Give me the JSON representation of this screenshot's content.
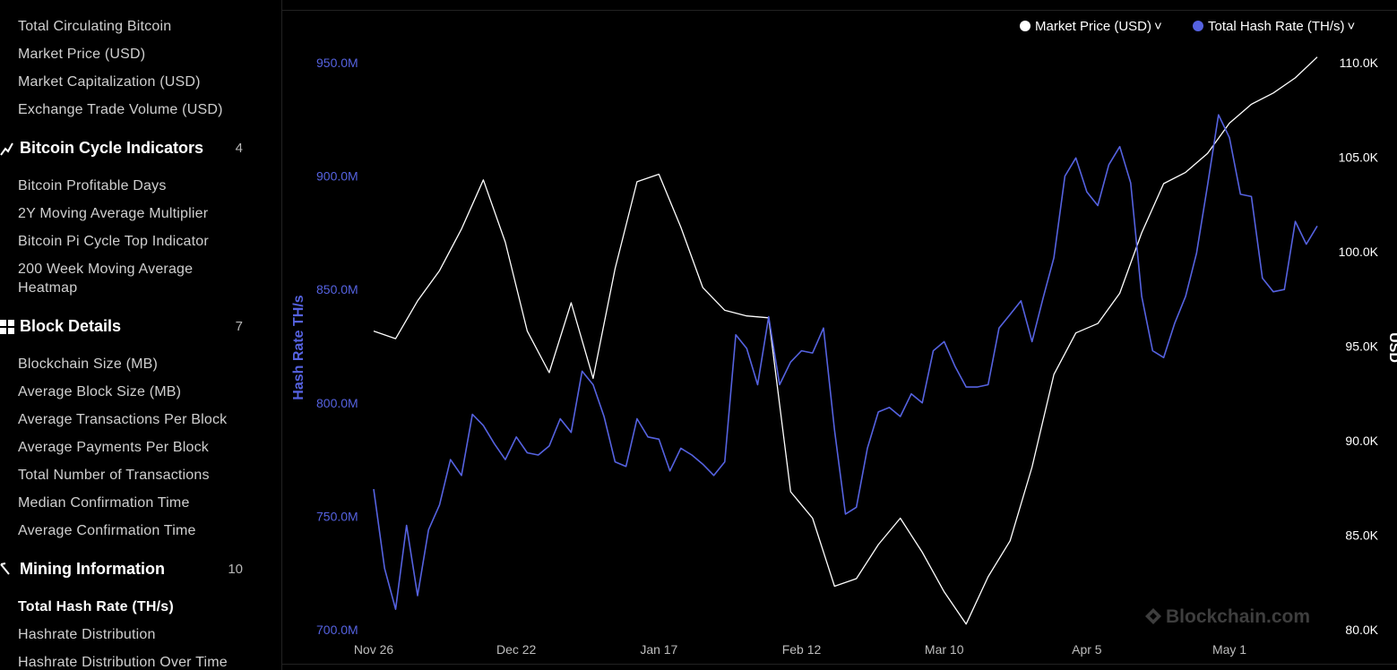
{
  "sidebar": {
    "items_top": [
      "Total Circulating Bitcoin",
      "Market Price (USD)",
      "Market Capitalization (USD)",
      "Exchange Trade Volume (USD)"
    ],
    "sections": [
      {
        "title": "Bitcoin Cycle Indicators",
        "count": "4",
        "icon": "chart-line-icon",
        "items": [
          "Bitcoin Profitable Days",
          "2Y Moving Average Multiplier",
          "Bitcoin Pi Cycle Top Indicator",
          "200 Week Moving Average Heatmap"
        ]
      },
      {
        "title": "Block Details",
        "count": "7",
        "icon": "grid-icon",
        "items": [
          "Blockchain Size (MB)",
          "Average Block Size (MB)",
          "Average Transactions Per Block",
          "Average Payments Per Block",
          "Total Number of Transactions",
          "Median Confirmation Time",
          "Average Confirmation Time"
        ]
      },
      {
        "title": "Mining Information",
        "count": "10",
        "icon": "pickaxe-icon",
        "items": [
          "Total Hash Rate (TH/s)",
          "Hashrate Distribution",
          "Hashrate Distribution Over Time"
        ]
      }
    ],
    "active_item": "Total Hash Rate (TH/s)"
  },
  "legend": {
    "price_label": "Market Price (USD)",
    "hash_label": "Total Hash Rate (TH/s)",
    "chevron": "˅"
  },
  "watermark": "Blockchain.com",
  "colors": {
    "price": "#ffffff",
    "hash": "#5562e0",
    "bg": "#000000"
  },
  "chart_data": {
    "type": "line",
    "ylabel_left": "Hash Rate TH/s",
    "ylabel_right": "USD",
    "x_ticks": [
      "Nov 26",
      "Dec 22",
      "Jan 17",
      "Feb 12",
      "Mar 10",
      "Apr 5",
      "May 1"
    ],
    "y_left_ticks": [
      "950.0M",
      "900.0M",
      "850.0M",
      "800.0M",
      "750.0M",
      "700.0M"
    ],
    "y_right_ticks": [
      "110.0K",
      "105.0K",
      "100.0K",
      "95.0K",
      "90.0K",
      "85.0K",
      "80.0K"
    ],
    "ylim_left": [
      700,
      950
    ],
    "ylim_right": [
      80000,
      110000
    ],
    "x_range": [
      "Nov 26",
      "May 15"
    ],
    "series": [
      {
        "name": "Total Hash Rate (TH/s)",
        "axis": "left",
        "unit": "M TH/s",
        "x_days": [
          0,
          2,
          4,
          6,
          8,
          10,
          12,
          14,
          16,
          18,
          20,
          22,
          24,
          26,
          28,
          30,
          32,
          34,
          36,
          38,
          40,
          42,
          44,
          46,
          48,
          50,
          52,
          54,
          56,
          58,
          60,
          62,
          64,
          66,
          68,
          70,
          72,
          74,
          76,
          78,
          80,
          82,
          84,
          86,
          88,
          90,
          92,
          94,
          96,
          98,
          100,
          102,
          104,
          106,
          108,
          110,
          112,
          114,
          116,
          118,
          120,
          122,
          124,
          126,
          128,
          130,
          132,
          134,
          136,
          138,
          140,
          142,
          144,
          146,
          148,
          150,
          152,
          154,
          156,
          158,
          160,
          162,
          164,
          166,
          168,
          170,
          172
        ],
        "values": [
          762,
          727,
          709,
          746,
          715,
          744,
          755,
          775,
          768,
          795,
          790,
          782,
          775,
          785,
          778,
          777,
          781,
          793,
          787,
          814,
          808,
          794,
          774,
          772,
          793,
          785,
          784,
          770,
          780,
          777,
          773,
          768,
          774,
          830,
          824,
          808,
          838,
          808,
          818,
          823,
          822,
          833,
          788,
          751,
          754,
          780,
          796,
          798,
          794,
          804,
          800,
          823,
          827,
          816,
          807,
          807,
          808,
          833,
          839,
          845,
          827,
          846,
          864,
          900,
          908,
          893,
          887,
          905,
          913,
          897,
          847,
          823,
          820,
          835,
          847,
          866,
          896,
          927,
          917,
          892,
          891,
          855,
          849,
          850,
          880,
          870,
          878
        ],
        "values_note": "approximate, read from the plotted line"
      },
      {
        "name": "Market Price (USD)",
        "axis": "right",
        "unit": "USD",
        "x_days": [
          0,
          4,
          8,
          12,
          16,
          20,
          24,
          28,
          32,
          36,
          40,
          44,
          48,
          52,
          56,
          60,
          64,
          68,
          72,
          76,
          80,
          84,
          88,
          92,
          96,
          100,
          104,
          108,
          112,
          116,
          120,
          124,
          128,
          132,
          136,
          140,
          144,
          148,
          152,
          156,
          160,
          164,
          168,
          172
        ],
        "values": [
          95800,
          95400,
          97400,
          99000,
          101200,
          103800,
          100500,
          95800,
          93600,
          97300,
          93300,
          99100,
          103700,
          104100,
          101300,
          98100,
          96900,
          96600,
          96500,
          87300,
          85900,
          82300,
          82700,
          84500,
          85900,
          84100,
          82000,
          80300,
          82800,
          84700,
          88600,
          93500,
          95700,
          96200,
          97800,
          101000,
          103600,
          104200,
          105200,
          106800,
          107800,
          108400,
          109200,
          110300
        ],
        "values_note": "approximate, read from the plotted line"
      }
    ]
  }
}
